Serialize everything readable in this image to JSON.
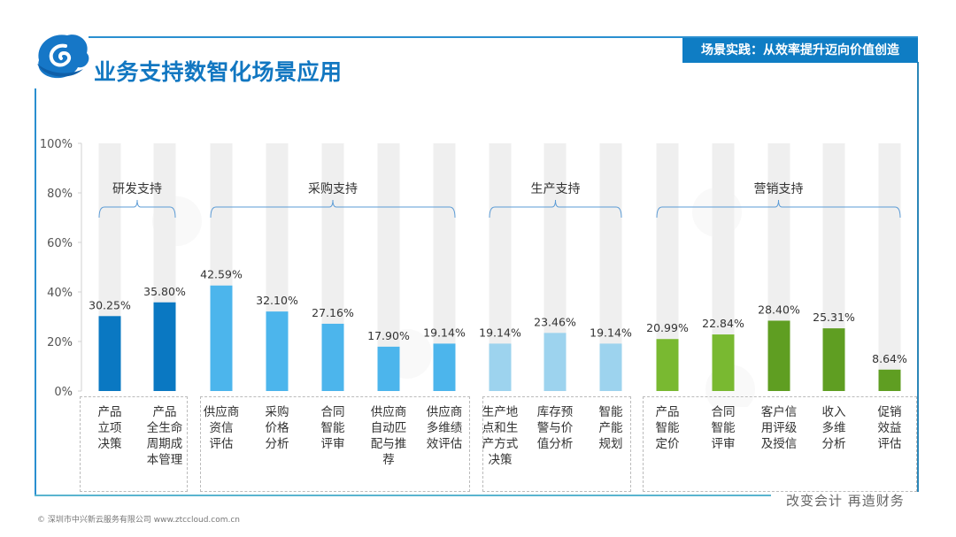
{
  "header": {
    "title": "业务支持数智化场景应用",
    "badge": "场景实践：从效率提升迈向价值创造",
    "logo_icon": "cloud-swirl-logo-icon"
  },
  "footer": {
    "slogan": "改变会计  再造财务",
    "copyright": "© 深圳市中兴新云服务有限公司  www.ztccloud.com.cn"
  },
  "colors": {
    "frame": "#2a8fd0",
    "badge": "#0f7dc4",
    "title": "#1277c1",
    "track": "#efefef",
    "rd": "#0a78c2",
    "procurement": "#4cb5ec",
    "production": "#9dd3ee",
    "marketing_light": "#79b931",
    "marketing_dark": "#5f9e22"
  },
  "chart_data": {
    "type": "bar",
    "title": "业务支持数智化场景应用",
    "xlabel": "",
    "ylabel": "",
    "ylim": [
      0,
      100
    ],
    "yticks": [
      "0%",
      "20%",
      "40%",
      "60%",
      "80%",
      "100%"
    ],
    "grid": false,
    "background_track": 100,
    "groups": [
      {
        "name": "研发支持",
        "color_key": "rd",
        "start": 0,
        "end": 1
      },
      {
        "name": "采购支持",
        "color_key": "procurement",
        "start": 2,
        "end": 6
      },
      {
        "name": "生产支持",
        "color_key": "production",
        "start": 7,
        "end": 9
      },
      {
        "name": "营销支持",
        "color_key": "marketing_light",
        "start": 10,
        "end": 14
      }
    ],
    "categories": [
      "产品立项决策",
      "产品全生命周期成本管理",
      "供应商资信评估",
      "采购价格分析",
      "合同智能评审",
      "供应商自动匹配与推荐",
      "供应商多维绩效评估",
      "生产地点和生产方式决策",
      "库存预警与价值分析",
      "智能产能规划",
      "产品智能定价",
      "合同智能评审",
      "客户信用评级及授信",
      "收入多维分析",
      "促销效益评估"
    ],
    "category_lines": [
      [
        "产品",
        "立项",
        "决策"
      ],
      [
        "产品",
        "全生命",
        "周期成",
        "本管理"
      ],
      [
        "供应商",
        "资信",
        "评估"
      ],
      [
        "采购",
        "价格",
        "分析"
      ],
      [
        "合同",
        "智能",
        "评审"
      ],
      [
        "供应商",
        "自动匹",
        "配与推",
        "荐"
      ],
      [
        "供应商",
        "多维绩",
        "效评估"
      ],
      [
        "生产地",
        "点和生",
        "产方式",
        "决策"
      ],
      [
        "库存预",
        "警与价",
        "值分析"
      ],
      [
        "智能",
        "产能",
        "规划"
      ],
      [
        "产品",
        "智能",
        "定价"
      ],
      [
        "合同",
        "智能",
        "评审"
      ],
      [
        "客户信",
        "用评级",
        "及授信"
      ],
      [
        "收入",
        "多维",
        "分析"
      ],
      [
        "促销",
        "效益",
        "评估"
      ]
    ],
    "values": [
      30.25,
      35.8,
      42.59,
      32.1,
      27.16,
      17.9,
      19.14,
      19.14,
      23.46,
      19.14,
      20.99,
      22.84,
      28.4,
      25.31,
      8.64
    ],
    "labels": [
      "30.25%",
      "35.80%",
      "42.59%",
      "32.10%",
      "27.16%",
      "17.90%",
      "19.14%",
      "19.14%",
      "23.46%",
      "19.14%",
      "20.99%",
      "22.84%",
      "28.40%",
      "25.31%",
      "8.64%"
    ],
    "bar_color_keys": [
      "rd",
      "rd",
      "procurement",
      "procurement",
      "procurement",
      "procurement",
      "procurement",
      "production",
      "production",
      "production",
      "marketing_light",
      "marketing_light",
      "marketing_dark",
      "marketing_dark",
      "marketing_dark"
    ]
  }
}
